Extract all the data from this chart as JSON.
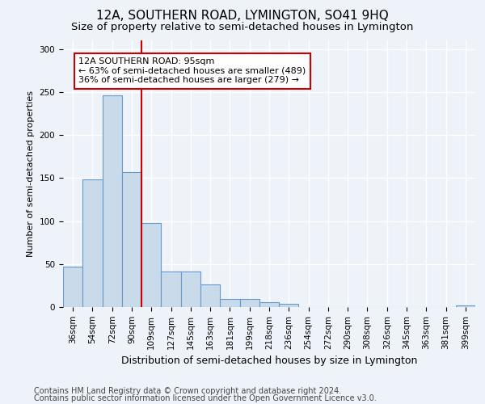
{
  "title": "12A, SOUTHERN ROAD, LYMINGTON, SO41 9HQ",
  "subtitle": "Size of property relative to semi-detached houses in Lymington",
  "xlabel": "Distribution of semi-detached houses by size in Lymington",
  "ylabel": "Number of semi-detached properties",
  "categories": [
    "36sqm",
    "54sqm",
    "72sqm",
    "90sqm",
    "109sqm",
    "127sqm",
    "145sqm",
    "163sqm",
    "181sqm",
    "199sqm",
    "218sqm",
    "236sqm",
    "254sqm",
    "272sqm",
    "290sqm",
    "308sqm",
    "326sqm",
    "345sqm",
    "363sqm",
    "381sqm",
    "399sqm"
  ],
  "values": [
    47,
    148,
    246,
    157,
    98,
    41,
    41,
    26,
    9,
    9,
    6,
    4,
    0,
    0,
    0,
    0,
    0,
    0,
    0,
    0,
    2
  ],
  "bar_color": "#c9daea",
  "bar_edge_color": "#6699cc",
  "vline_x": 3.5,
  "vline_color": "#cc0000",
  "annotation_text": "12A SOUTHERN ROAD: 95sqm\n← 63% of semi-detached houses are smaller (489)\n36% of semi-detached houses are larger (279) →",
  "annotation_box_facecolor": "#ffffff",
  "annotation_box_edgecolor": "#cc0000",
  "footer_line1": "Contains HM Land Registry data © Crown copyright and database right 2024.",
  "footer_line2": "Contains public sector information licensed under the Open Government Licence v3.0.",
  "ylim": [
    0,
    310
  ],
  "yticks": [
    0,
    50,
    100,
    150,
    200,
    250,
    300
  ],
  "background_color": "#eef2f9",
  "plot_bg_color": "#eef2f9",
  "grid_color": "#ffffff",
  "title_fontsize": 11,
  "subtitle_fontsize": 9.5,
  "xlabel_fontsize": 9,
  "ylabel_fontsize": 8,
  "tick_fontsize": 7.5,
  "annotation_fontsize": 8,
  "footer_fontsize": 7
}
